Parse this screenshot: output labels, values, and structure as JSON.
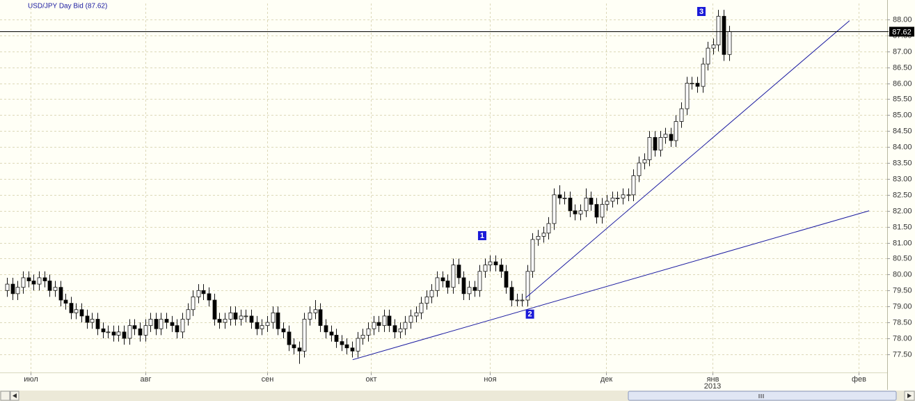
{
  "chart_data": {
    "type": "candlestick",
    "title": "USD/JPY Day Bid (87.62)",
    "candles": [
      [
        79.5,
        79.9,
        79.3,
        79.7
      ],
      [
        79.7,
        79.9,
        79.2,
        79.4
      ],
      [
        79.4,
        79.8,
        79.2,
        79.6
      ],
      [
        79.6,
        80.1,
        79.4,
        79.9
      ],
      [
        79.9,
        80.1,
        79.6,
        79.8
      ],
      [
        79.8,
        80.0,
        79.5,
        79.7
      ],
      [
        79.7,
        80.1,
        79.5,
        79.9
      ],
      [
        79.9,
        80.1,
        79.6,
        79.8
      ],
      [
        79.8,
        80.0,
        79.3,
        79.5
      ],
      [
        79.5,
        79.8,
        79.3,
        79.6
      ],
      [
        79.6,
        79.8,
        79.0,
        79.2
      ],
      [
        79.2,
        79.4,
        78.9,
        79.1
      ],
      [
        79.1,
        79.3,
        78.6,
        78.8
      ],
      [
        78.8,
        79.1,
        78.6,
        78.9
      ],
      [
        78.9,
        79.1,
        78.5,
        78.7
      ],
      [
        78.7,
        78.9,
        78.3,
        78.5
      ],
      [
        78.5,
        78.8,
        78.3,
        78.6
      ],
      [
        78.6,
        78.8,
        78.1,
        78.3
      ],
      [
        78.3,
        78.5,
        78.0,
        78.2
      ],
      [
        78.2,
        78.4,
        78.0,
        78.2
      ],
      [
        78.2,
        78.4,
        77.9,
        78.1
      ],
      [
        78.1,
        78.4,
        77.9,
        78.2
      ],
      [
        78.2,
        78.4,
        77.8,
        78.0
      ],
      [
        78.0,
        78.6,
        77.8,
        78.4
      ],
      [
        78.4,
        78.6,
        78.1,
        78.3
      ],
      [
        78.3,
        78.5,
        77.9,
        78.1
      ],
      [
        78.1,
        78.6,
        77.9,
        78.4
      ],
      [
        78.4,
        78.8,
        78.2,
        78.6
      ],
      [
        78.6,
        78.8,
        78.1,
        78.3
      ],
      [
        78.3,
        78.8,
        78.1,
        78.6
      ],
      [
        78.6,
        78.8,
        78.3,
        78.5
      ],
      [
        78.5,
        78.7,
        78.2,
        78.4
      ],
      [
        78.4,
        78.6,
        78.0,
        78.2
      ],
      [
        78.2,
        78.8,
        78.0,
        78.6
      ],
      [
        78.6,
        79.1,
        78.4,
        78.9
      ],
      [
        78.9,
        79.5,
        78.7,
        79.3
      ],
      [
        79.3,
        79.7,
        79.1,
        79.5
      ],
      [
        79.5,
        79.7,
        79.2,
        79.4
      ],
      [
        79.4,
        79.6,
        79.0,
        79.2
      ],
      [
        79.2,
        79.4,
        78.4,
        78.6
      ],
      [
        78.6,
        78.8,
        78.3,
        78.5
      ],
      [
        78.5,
        78.8,
        78.3,
        78.6
      ],
      [
        78.6,
        79.0,
        78.4,
        78.8
      ],
      [
        78.8,
        79.0,
        78.4,
        78.6
      ],
      [
        78.6,
        78.9,
        78.4,
        78.7
      ],
      [
        78.7,
        78.9,
        78.5,
        78.7
      ],
      [
        78.7,
        78.9,
        78.3,
        78.5
      ],
      [
        78.5,
        78.7,
        78.1,
        78.3
      ],
      [
        78.3,
        78.6,
        78.1,
        78.4
      ],
      [
        78.4,
        78.7,
        78.2,
        78.5
      ],
      [
        78.5,
        79.0,
        78.3,
        78.8
      ],
      [
        78.8,
        79.0,
        78.1,
        78.3
      ],
      [
        78.3,
        78.5,
        78.0,
        78.2
      ],
      [
        78.2,
        78.4,
        77.6,
        77.8
      ],
      [
        77.8,
        78.0,
        77.5,
        77.7
      ],
      [
        77.7,
        77.9,
        77.2,
        77.6
      ],
      [
        77.6,
        78.8,
        77.4,
        78.6
      ],
      [
        78.6,
        79.0,
        78.4,
        78.8
      ],
      [
        78.8,
        79.2,
        78.6,
        78.9
      ],
      [
        78.9,
        79.1,
        78.2,
        78.4
      ],
      [
        78.4,
        78.6,
        78.0,
        78.2
      ],
      [
        78.2,
        78.4,
        77.9,
        78.1
      ],
      [
        78.1,
        78.3,
        77.7,
        77.9
      ],
      [
        77.9,
        78.1,
        77.6,
        77.8
      ],
      [
        77.8,
        78.0,
        77.5,
        77.7
      ],
      [
        77.7,
        77.9,
        77.4,
        77.6
      ],
      [
        77.6,
        78.2,
        77.4,
        78.0
      ],
      [
        78.0,
        78.3,
        77.8,
        78.1
      ],
      [
        78.1,
        78.5,
        77.9,
        78.3
      ],
      [
        78.3,
        78.7,
        78.1,
        78.5
      ],
      [
        78.5,
        78.7,
        78.2,
        78.4
      ],
      [
        78.4,
        78.9,
        78.2,
        78.7
      ],
      [
        78.7,
        78.9,
        78.2,
        78.4
      ],
      [
        78.4,
        78.6,
        78.0,
        78.2
      ],
      [
        78.2,
        78.5,
        78.0,
        78.3
      ],
      [
        78.3,
        78.7,
        78.1,
        78.5
      ],
      [
        78.5,
        78.9,
        78.3,
        78.7
      ],
      [
        78.7,
        79.0,
        78.5,
        78.8
      ],
      [
        78.8,
        79.3,
        78.6,
        79.1
      ],
      [
        79.1,
        79.5,
        78.9,
        79.3
      ],
      [
        79.3,
        79.7,
        79.1,
        79.5
      ],
      [
        79.5,
        80.1,
        79.3,
        79.9
      ],
      [
        79.9,
        80.1,
        79.6,
        79.8
      ],
      [
        79.8,
        80.0,
        79.4,
        79.6
      ],
      [
        79.6,
        80.5,
        79.4,
        80.3
      ],
      [
        80.3,
        80.5,
        79.7,
        79.9
      ],
      [
        79.9,
        80.1,
        79.2,
        79.4
      ],
      [
        79.4,
        79.8,
        79.2,
        79.6
      ],
      [
        79.6,
        79.8,
        79.3,
        79.5
      ],
      [
        79.5,
        80.3,
        79.3,
        80.1
      ],
      [
        80.1,
        80.5,
        79.9,
        80.3
      ],
      [
        80.3,
        80.6,
        80.1,
        80.4
      ],
      [
        80.4,
        80.6,
        80.1,
        80.3
      ],
      [
        80.3,
        80.5,
        79.9,
        80.1
      ],
      [
        80.1,
        80.3,
        79.4,
        79.6
      ],
      [
        79.6,
        79.8,
        79.0,
        79.2
      ],
      [
        79.2,
        79.4,
        79.0,
        79.2
      ],
      [
        79.2,
        79.4,
        79.0,
        79.2
      ],
      [
        79.2,
        80.3,
        79.0,
        80.1
      ],
      [
        80.1,
        81.3,
        79.9,
        81.1
      ],
      [
        81.1,
        81.4,
        80.9,
        81.2
      ],
      [
        81.2,
        81.5,
        81.0,
        81.3
      ],
      [
        81.3,
        81.8,
        81.1,
        81.6
      ],
      [
        81.6,
        82.7,
        81.4,
        82.5
      ],
      [
        82.5,
        82.8,
        82.2,
        82.4
      ],
      [
        82.4,
        82.6,
        82.2,
        82.4
      ],
      [
        82.4,
        82.6,
        81.8,
        82.0
      ],
      [
        82.0,
        82.2,
        81.7,
        81.9
      ],
      [
        81.9,
        82.2,
        81.7,
        82.0
      ],
      [
        82.0,
        82.7,
        81.8,
        82.4
      ],
      [
        82.4,
        82.6,
        82.0,
        82.2
      ],
      [
        82.2,
        82.4,
        81.6,
        81.8
      ],
      [
        81.8,
        82.4,
        81.6,
        82.2
      ],
      [
        82.2,
        82.5,
        82.0,
        82.3
      ],
      [
        82.3,
        82.6,
        82.1,
        82.4
      ],
      [
        82.4,
        82.6,
        82.2,
        82.4
      ],
      [
        82.4,
        82.7,
        82.2,
        82.5
      ],
      [
        82.5,
        82.7,
        82.3,
        82.5
      ],
      [
        82.5,
        83.3,
        82.3,
        83.1
      ],
      [
        83.1,
        83.7,
        82.9,
        83.5
      ],
      [
        83.5,
        83.8,
        83.3,
        83.6
      ],
      [
        83.6,
        84.5,
        83.4,
        84.3
      ],
      [
        84.3,
        84.5,
        83.7,
        83.9
      ],
      [
        83.9,
        84.5,
        83.7,
        84.3
      ],
      [
        84.3,
        84.6,
        84.1,
        84.4
      ],
      [
        84.4,
        84.6,
        84.0,
        84.2
      ],
      [
        84.2,
        85.0,
        84.0,
        84.8
      ],
      [
        84.8,
        85.4,
        84.6,
        85.2
      ],
      [
        85.2,
        86.2,
        85.0,
        86.0
      ],
      [
        86.0,
        86.2,
        85.8,
        86.0
      ],
      [
        86.0,
        86.2,
        85.7,
        85.9
      ],
      [
        85.9,
        86.8,
        85.7,
        86.6
      ],
      [
        86.6,
        87.3,
        86.4,
        87.1
      ],
      [
        87.1,
        87.4,
        86.9,
        87.2
      ],
      [
        87.2,
        88.3,
        87.0,
        88.1
      ],
      [
        88.1,
        88.3,
        86.7,
        86.9
      ],
      [
        86.9,
        87.8,
        86.7,
        87.62
      ]
    ],
    "last": 87.62,
    "ylim": [
      76.93,
      88.5
    ],
    "xlim": [
      -1.34,
      165.8
    ],
    "yticks": [
      {
        "value": 77.5,
        "label": "77.50"
      },
      {
        "value": 78,
        "label": "78.00"
      },
      {
        "value": 78.5,
        "label": "78.50"
      },
      {
        "value": 79,
        "label": "79.00"
      },
      {
        "value": 79.5,
        "label": "79.50"
      },
      {
        "value": 80,
        "label": "80.00"
      },
      {
        "value": 80.5,
        "label": "80.50"
      },
      {
        "value": 81,
        "label": "81.00"
      },
      {
        "value": 81.5,
        "label": "81.50"
      },
      {
        "value": 82,
        "label": "82.00"
      },
      {
        "value": 82.5,
        "label": "82.50"
      },
      {
        "value": 83,
        "label": "83.00"
      },
      {
        "value": 83.5,
        "label": "83.50"
      },
      {
        "value": 84,
        "label": "84.00"
      },
      {
        "value": 84.5,
        "label": "84.50"
      },
      {
        "value": 85,
        "label": "85.00"
      },
      {
        "value": 85.5,
        "label": "85.50"
      },
      {
        "value": 86,
        "label": "86.00"
      },
      {
        "value": 86.5,
        "label": "86.50"
      },
      {
        "value": 87,
        "label": "87.00"
      },
      {
        "value": 87.5,
        "label": "87.50"
      },
      {
        "value": 88,
        "label": "88.00"
      }
    ],
    "xticks": [
      {
        "value": 4.4,
        "label": "июл"
      },
      {
        "value": 26,
        "label": "авг"
      },
      {
        "value": 49,
        "label": "сен"
      },
      {
        "value": 68.5,
        "label": "окт"
      },
      {
        "value": 91,
        "label": "ноя"
      },
      {
        "value": 112.8,
        "label": "дек"
      },
      {
        "value": 132.9,
        "label": "янв"
      },
      {
        "value": 160.4,
        "label": "фев"
      }
    ],
    "year_label": {
      "value": 132.9,
      "label": "2013"
    },
    "trendlines": [
      {
        "x": [
          65.1,
          162.4
        ],
        "y": [
          77.33,
          82.0
        ]
      },
      {
        "x": [
          97.7,
          158.7
        ],
        "y": [
          79.27,
          87.96
        ]
      }
    ],
    "annotations": [
      {
        "text": "1",
        "x": 89.5,
        "y": 81.23
      },
      {
        "text": "2",
        "x": 98.5,
        "y": 78.77
      },
      {
        "text": "3",
        "x": 130.8,
        "y": 88.26
      }
    ],
    "grid": true,
    "up_color": "#ffffff",
    "down_color": "#000000",
    "trend_color": "#1a1aa0",
    "annotation_color": "#1a1ad8"
  }
}
